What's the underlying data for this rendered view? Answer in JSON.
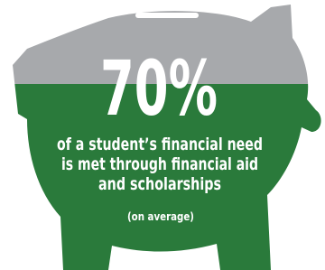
{
  "headline": "70%",
  "description": [
    "of a student’s financial need",
    "is met through financial aid",
    "and scholarships"
  ],
  "note": "(on average)"
}
